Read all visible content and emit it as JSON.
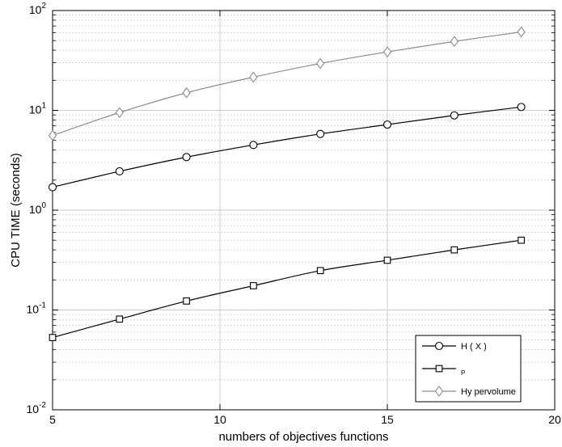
{
  "chart_data": {
    "type": "line",
    "xlabel": "numbers of objectives functions",
    "ylabel": "CPU TIME (seconds)",
    "xlim": [
      5,
      20
    ],
    "ylim": [
      0.01,
      100
    ],
    "yscale": "log",
    "grid": true,
    "legend_position": "bottom-right",
    "x_ticks": [
      "5",
      "10",
      "15",
      "20"
    ],
    "y_ticks": [
      {
        "base": "10",
        "exp": "-2"
      },
      {
        "base": "10",
        "exp": "-1"
      },
      {
        "base": "10",
        "exp": "0"
      },
      {
        "base": "10",
        "exp": "1"
      },
      {
        "base": "10",
        "exp": "2"
      }
    ],
    "x": [
      5,
      7,
      9,
      11,
      13,
      15,
      17,
      19
    ],
    "series": [
      {
        "name": "H ( X )",
        "marker": "circle",
        "color": "#000000",
        "values": [
          1.7,
          2.45,
          3.4,
          4.5,
          5.8,
          7.2,
          8.9,
          10.8
        ]
      },
      {
        "name": "P",
        "marker": "square",
        "color": "#000000",
        "values": [
          0.053,
          0.081,
          0.123,
          0.175,
          0.248,
          0.315,
          0.4,
          0.5
        ]
      },
      {
        "name": "Hy pervolume",
        "marker": "diamond",
        "color": "#8c8c8c",
        "values": [
          5.6,
          9.5,
          15,
          21.5,
          29.5,
          38.5,
          49,
          61
        ]
      }
    ]
  }
}
